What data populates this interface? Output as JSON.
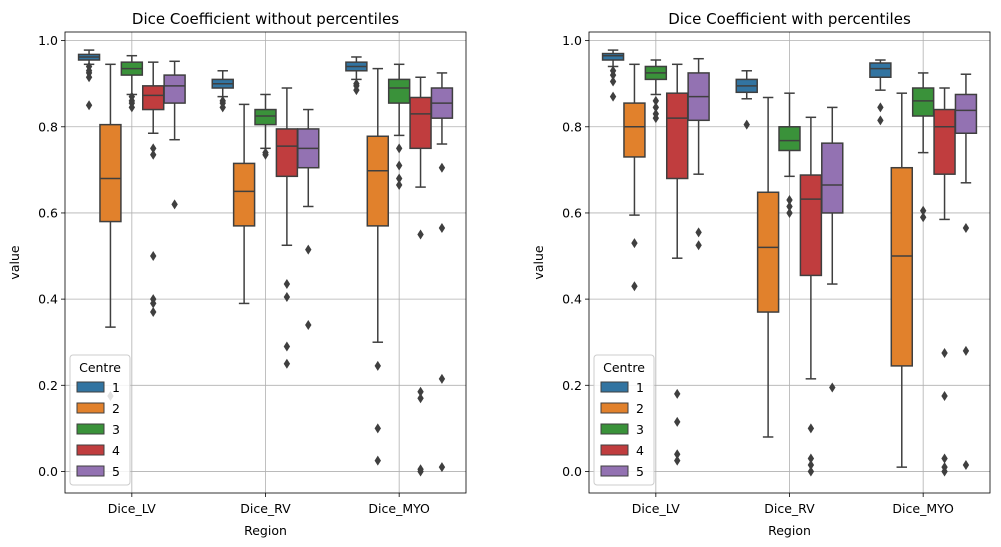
{
  "legend_title": "Centre",
  "centres": [
    "1",
    "2",
    "3",
    "4",
    "5"
  ],
  "colors": [
    "#3274a1",
    "#e1812c",
    "#3a923a",
    "#c03d3e",
    "#9372b2"
  ],
  "chart_data": [
    {
      "type": "box",
      "title": "Dice Coefficient without percentiles",
      "xlabel": "Region",
      "ylabel": "value",
      "categories": [
        "Dice_LV",
        "Dice_RV",
        "Dice_MYO"
      ],
      "yticks": [
        "0.0",
        "0.2",
        "0.4",
        "0.6",
        "0.8",
        "1.0"
      ],
      "ylim": [
        -0.05,
        1.02
      ],
      "grid": true,
      "legend_position": "lower-left",
      "boxes": [
        {
          "category": "Dice_LV",
          "centre": "1",
          "whislo": 0.945,
          "q1": 0.955,
          "med": 0.962,
          "q3": 0.968,
          "whishi": 0.978,
          "fliers": [
            0.94,
            0.93,
            0.925,
            0.915,
            0.85
          ]
        },
        {
          "category": "Dice_LV",
          "centre": "2",
          "whislo": 0.335,
          "q1": 0.58,
          "med": 0.68,
          "q3": 0.805,
          "whishi": 0.945,
          "fliers": [
            0.175
          ]
        },
        {
          "category": "Dice_LV",
          "centre": "3",
          "whislo": 0.875,
          "q1": 0.92,
          "med": 0.935,
          "q3": 0.95,
          "whishi": 0.965,
          "fliers": [
            0.87,
            0.86,
            0.855,
            0.845
          ]
        },
        {
          "category": "Dice_LV",
          "centre": "4",
          "whislo": 0.785,
          "q1": 0.84,
          "med": 0.873,
          "q3": 0.895,
          "whishi": 0.95,
          "fliers": [
            0.75,
            0.735,
            0.5,
            0.4,
            0.39,
            0.37
          ]
        },
        {
          "category": "Dice_LV",
          "centre": "5",
          "whislo": 0.77,
          "q1": 0.855,
          "med": 0.895,
          "q3": 0.92,
          "whishi": 0.952,
          "fliers": [
            0.62
          ]
        },
        {
          "category": "Dice_RV",
          "centre": "1",
          "whislo": 0.87,
          "q1": 0.89,
          "med": 0.9,
          "q3": 0.91,
          "whishi": 0.93,
          "fliers": [
            0.86,
            0.855,
            0.845
          ]
        },
        {
          "category": "Dice_RV",
          "centre": "2",
          "whislo": 0.39,
          "q1": 0.57,
          "med": 0.65,
          "q3": 0.715,
          "whishi": 0.852,
          "fliers": []
        },
        {
          "category": "Dice_RV",
          "centre": "3",
          "whislo": 0.75,
          "q1": 0.805,
          "med": 0.825,
          "q3": 0.84,
          "whishi": 0.875,
          "fliers": [
            0.74,
            0.735
          ]
        },
        {
          "category": "Dice_RV",
          "centre": "4",
          "whislo": 0.525,
          "q1": 0.685,
          "med": 0.755,
          "q3": 0.795,
          "whishi": 0.89,
          "fliers": [
            0.435,
            0.405,
            0.29,
            0.25
          ]
        },
        {
          "category": "Dice_RV",
          "centre": "5",
          "whislo": 0.615,
          "q1": 0.705,
          "med": 0.75,
          "q3": 0.795,
          "whishi": 0.84,
          "fliers": [
            0.515,
            0.34
          ]
        },
        {
          "category": "Dice_MYO",
          "centre": "1",
          "whislo": 0.91,
          "q1": 0.93,
          "med": 0.94,
          "q3": 0.95,
          "whishi": 0.962,
          "fliers": [
            0.9,
            0.895,
            0.885
          ]
        },
        {
          "category": "Dice_MYO",
          "centre": "2",
          "whislo": 0.3,
          "q1": 0.57,
          "med": 0.698,
          "q3": 0.778,
          "whishi": 0.935,
          "fliers": [
            0.245,
            0.1,
            0.025
          ]
        },
        {
          "category": "Dice_MYO",
          "centre": "3",
          "whislo": 0.78,
          "q1": 0.855,
          "med": 0.89,
          "q3": 0.91,
          "whishi": 0.945,
          "fliers": [
            0.75,
            0.71,
            0.68,
            0.665
          ]
        },
        {
          "category": "Dice_MYO",
          "centre": "4",
          "whislo": 0.66,
          "q1": 0.75,
          "med": 0.83,
          "q3": 0.868,
          "whishi": 0.915,
          "fliers": [
            0.55,
            0.185,
            0.17,
            0.005,
            0.0
          ]
        },
        {
          "category": "Dice_MYO",
          "centre": "5",
          "whislo": 0.76,
          "q1": 0.82,
          "med": 0.855,
          "q3": 0.89,
          "whishi": 0.925,
          "fliers": [
            0.705,
            0.565,
            0.215,
            0.01
          ]
        }
      ]
    },
    {
      "type": "box",
      "title": "Dice Coefficient with percentiles",
      "xlabel": "Region",
      "ylabel": "value",
      "categories": [
        "Dice_LV",
        "Dice_RV",
        "Dice_MYO"
      ],
      "yticks": [
        "0.0",
        "0.2",
        "0.4",
        "0.6",
        "0.8",
        "1.0"
      ],
      "ylim": [
        -0.05,
        1.02
      ],
      "grid": true,
      "legend_position": "lower-left",
      "boxes": [
        {
          "category": "Dice_LV",
          "centre": "1",
          "whislo": 0.94,
          "q1": 0.955,
          "med": 0.965,
          "q3": 0.97,
          "whishi": 0.978,
          "fliers": [
            0.93,
            0.92,
            0.905,
            0.87
          ]
        },
        {
          "category": "Dice_LV",
          "centre": "2",
          "whislo": 0.595,
          "q1": 0.73,
          "med": 0.8,
          "q3": 0.855,
          "whishi": 0.945,
          "fliers": [
            0.53,
            0.43
          ]
        },
        {
          "category": "Dice_LV",
          "centre": "3",
          "whislo": 0.875,
          "q1": 0.91,
          "med": 0.925,
          "q3": 0.94,
          "whishi": 0.955,
          "fliers": [
            0.86,
            0.845,
            0.83,
            0.82
          ]
        },
        {
          "category": "Dice_LV",
          "centre": "4",
          "whislo": 0.495,
          "q1": 0.68,
          "med": 0.82,
          "q3": 0.878,
          "whishi": 0.945,
          "fliers": [
            0.18,
            0.115,
            0.04,
            0.025
          ]
        },
        {
          "category": "Dice_LV",
          "centre": "5",
          "whislo": 0.69,
          "q1": 0.815,
          "med": 0.87,
          "q3": 0.925,
          "whishi": 0.958,
          "fliers": [
            0.555,
            0.525
          ]
        },
        {
          "category": "Dice_RV",
          "centre": "1",
          "whislo": 0.865,
          "q1": 0.88,
          "med": 0.895,
          "q3": 0.91,
          "whishi": 0.93,
          "fliers": [
            0.805
          ]
        },
        {
          "category": "Dice_RV",
          "centre": "2",
          "whislo": 0.08,
          "q1": 0.37,
          "med": 0.52,
          "q3": 0.648,
          "whishi": 0.868,
          "fliers": []
        },
        {
          "category": "Dice_RV",
          "centre": "3",
          "whislo": 0.685,
          "q1": 0.745,
          "med": 0.768,
          "q3": 0.8,
          "whishi": 0.878,
          "fliers": [
            0.63,
            0.615,
            0.6
          ]
        },
        {
          "category": "Dice_RV",
          "centre": "4",
          "whislo": 0.215,
          "q1": 0.455,
          "med": 0.632,
          "q3": 0.688,
          "whishi": 0.822,
          "fliers": [
            0.1,
            0.03,
            0.015,
            0.0
          ]
        },
        {
          "category": "Dice_RV",
          "centre": "5",
          "whislo": 0.435,
          "q1": 0.6,
          "med": 0.665,
          "q3": 0.762,
          "whishi": 0.845,
          "fliers": [
            0.195
          ]
        },
        {
          "category": "Dice_MYO",
          "centre": "1",
          "whislo": 0.885,
          "q1": 0.915,
          "med": 0.935,
          "q3": 0.948,
          "whishi": 0.955,
          "fliers": [
            0.845,
            0.815
          ]
        },
        {
          "category": "Dice_MYO",
          "centre": "2",
          "whislo": 0.01,
          "q1": 0.245,
          "med": 0.5,
          "q3": 0.705,
          "whishi": 0.878,
          "fliers": []
        },
        {
          "category": "Dice_MYO",
          "centre": "3",
          "whislo": 0.74,
          "q1": 0.825,
          "med": 0.86,
          "q3": 0.89,
          "whishi": 0.925,
          "fliers": [
            0.605,
            0.59
          ]
        },
        {
          "category": "Dice_MYO",
          "centre": "4",
          "whislo": 0.585,
          "q1": 0.69,
          "med": 0.8,
          "q3": 0.84,
          "whishi": 0.89,
          "fliers": [
            0.275,
            0.175,
            0.03,
            0.01,
            0.0
          ]
        },
        {
          "category": "Dice_MYO",
          "centre": "5",
          "whislo": 0.67,
          "q1": 0.785,
          "med": 0.838,
          "q3": 0.875,
          "whishi": 0.922,
          "fliers": [
            0.565,
            0.28,
            0.015
          ]
        }
      ]
    }
  ]
}
